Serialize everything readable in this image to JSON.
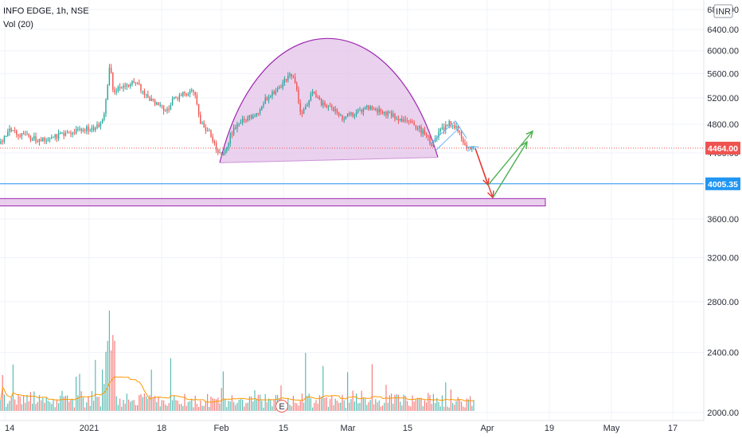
{
  "header": {
    "symbol_line": "INFO EDGE, 1h, NSE",
    "indicator": "Vol (20)",
    "currency": "INR"
  },
  "colors": {
    "up": "#26a69a",
    "down": "#ef5350",
    "current_price": "#ef5350",
    "support_line": "#2196f3",
    "pattern_fill": "#e1bee7",
    "pattern_stroke": "#9c27b0",
    "arrow_up": "#4caf50",
    "arrow_down": "#e53935",
    "vol_ma": "#ff9800"
  },
  "chart_data": {
    "type": "candlestick",
    "x_axis": {
      "ticks": [
        "14",
        "2021",
        "18",
        "Feb",
        "15",
        "Mar",
        "15",
        "Apr",
        "19",
        "May",
        "17"
      ]
    },
    "y_axis": {
      "scale": "log",
      "range": [
        1990,
        7000
      ],
      "ticks": [
        2000,
        2400,
        2800,
        3200,
        3600,
        4000,
        4400,
        4800,
        5200,
        5600,
        6000,
        6400,
        6800
      ],
      "tick_labels": [
        "2000.00",
        "2400.00",
        "2800.00",
        "3200.00",
        "3600.00",
        "4000.00",
        "4400.00",
        "4800.00",
        "5200.00",
        "5600.00",
        "6000.00",
        "6400.00",
        "6800.00"
      ]
    },
    "price_markers": [
      {
        "name": "last-price",
        "value": 4464.0,
        "label": "4464.00"
      },
      {
        "name": "support-line",
        "value": 4005.35,
        "label": "4005.35"
      }
    ],
    "support_zone": {
      "low": 3745,
      "high": 3830
    },
    "cup_pattern": {
      "left_low": 4270,
      "top": 5700,
      "right_low": 4340
    },
    "projection_points": {
      "drop_target": 3840,
      "bounce_high_1": 4700,
      "bounce_high_2": 4550
    },
    "events": [
      {
        "label": "E"
      }
    ]
  }
}
